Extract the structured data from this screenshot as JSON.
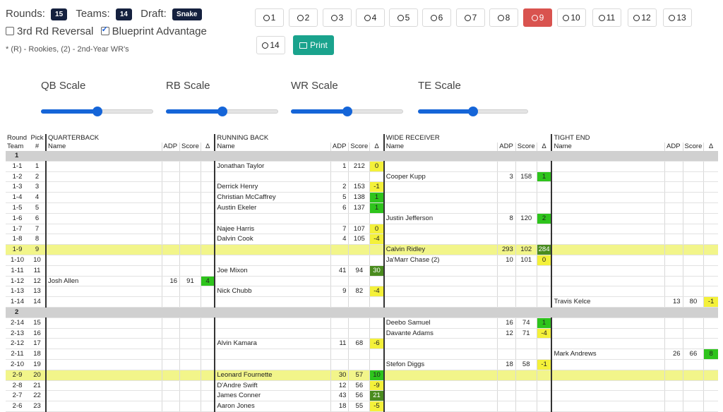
{
  "settings": {
    "rounds_label": "Rounds:",
    "rounds_value": "15",
    "teams_label": "Teams:",
    "teams_value": "14",
    "draft_label": "Draft:",
    "draft_value": "Snake",
    "reversal_label": "3rd Rd Reversal",
    "reversal_checked": false,
    "blueprint_label": "Blueprint Advantage",
    "blueprint_checked": true,
    "note": "* (R) - Rookies, (2) - 2nd-Year WR's"
  },
  "team_buttons": [
    "1",
    "2",
    "3",
    "4",
    "5",
    "6",
    "7",
    "8",
    "9",
    "10",
    "11",
    "12",
    "13",
    "14"
  ],
  "active_team": "9",
  "print_label": "Print",
  "scales": [
    {
      "label": "QB Scale",
      "value": 0.5
    },
    {
      "label": "RB Scale",
      "value": 0.5
    },
    {
      "label": "WR Scale",
      "value": 0.5
    },
    {
      "label": "TE Scale",
      "value": 0.5
    }
  ],
  "table": {
    "h_round": "Round",
    "h_team": "Team",
    "h_pick": "Pick",
    "h_num": "#",
    "groups": [
      "QUARTERBACK",
      "RUNNING BACK",
      "WIDE RECEIVER",
      "TIGHT END"
    ],
    "h_name": "Name",
    "h_adp": "ADP",
    "h_score": "Score",
    "h_delta": "Δ",
    "rows": [
      {
        "group": "1"
      },
      {
        "rt": "1-1",
        "pick": "1",
        "rb": {
          "name": "Jonathan Taylor",
          "adp": "1",
          "score": "212",
          "delta": "0",
          "c": "y"
        }
      },
      {
        "rt": "1-2",
        "pick": "2",
        "wr": {
          "name": "Cooper Kupp",
          "adp": "3",
          "score": "158",
          "delta": "1",
          "c": "g"
        }
      },
      {
        "rt": "1-3",
        "pick": "3",
        "rb": {
          "name": "Derrick Henry",
          "adp": "2",
          "score": "153",
          "delta": "-1",
          "c": "y"
        }
      },
      {
        "rt": "1-4",
        "pick": "4",
        "rb": {
          "name": "Christian McCaffrey",
          "adp": "5",
          "score": "138",
          "delta": "1",
          "c": "g"
        }
      },
      {
        "rt": "1-5",
        "pick": "5",
        "rb": {
          "name": "Austin Ekeler",
          "adp": "6",
          "score": "137",
          "delta": "1",
          "c": "g"
        }
      },
      {
        "rt": "1-6",
        "pick": "6",
        "wr": {
          "name": "Justin Jefferson",
          "adp": "8",
          "score": "120",
          "delta": "2",
          "c": "g"
        }
      },
      {
        "rt": "1-7",
        "pick": "7",
        "rb": {
          "name": "Najee Harris",
          "adp": "7",
          "score": "107",
          "delta": "0",
          "c": "y"
        }
      },
      {
        "rt": "1-8",
        "pick": "8",
        "rb": {
          "name": "Dalvin Cook",
          "adp": "4",
          "score": "105",
          "delta": "-4",
          "c": "y"
        }
      },
      {
        "rt": "1-9",
        "pick": "9",
        "hl": true,
        "wr": {
          "name": "Calvin Ridley",
          "adp": "293",
          "score": "102",
          "delta": "284",
          "c": "d"
        }
      },
      {
        "rt": "1-10",
        "pick": "10",
        "wr": {
          "name": "Ja'Marr Chase (2)",
          "adp": "10",
          "score": "101",
          "delta": "0",
          "c": "y"
        }
      },
      {
        "rt": "1-11",
        "pick": "11",
        "rb": {
          "name": "Joe Mixon",
          "adp": "41",
          "score": "94",
          "delta": "30",
          "c": "d"
        }
      },
      {
        "rt": "1-12",
        "pick": "12",
        "qb": {
          "name": "Josh Allen",
          "adp": "16",
          "score": "91",
          "delta": "4",
          "c": "g"
        }
      },
      {
        "rt": "1-13",
        "pick": "13",
        "rb": {
          "name": "Nick Chubb",
          "adp": "9",
          "score": "82",
          "delta": "-4",
          "c": "y"
        }
      },
      {
        "rt": "1-14",
        "pick": "14",
        "te": {
          "name": "Travis Kelce",
          "adp": "13",
          "score": "80",
          "delta": "-1",
          "c": "y"
        }
      },
      {
        "group": "2"
      },
      {
        "rt": "2-14",
        "pick": "15",
        "wr": {
          "name": "Deebo Samuel",
          "adp": "16",
          "score": "74",
          "delta": "1",
          "c": "g"
        }
      },
      {
        "rt": "2-13",
        "pick": "16",
        "wr": {
          "name": "Davante Adams",
          "adp": "12",
          "score": "71",
          "delta": "-4",
          "c": "y"
        }
      },
      {
        "rt": "2-12",
        "pick": "17",
        "rb": {
          "name": "Alvin Kamara",
          "adp": "11",
          "score": "68",
          "delta": "-6",
          "c": "y"
        }
      },
      {
        "rt": "2-11",
        "pick": "18",
        "te": {
          "name": "Mark Andrews",
          "adp": "26",
          "score": "66",
          "delta": "8",
          "c": "g"
        }
      },
      {
        "rt": "2-10",
        "pick": "19",
        "wr": {
          "name": "Stefon Diggs",
          "adp": "18",
          "score": "58",
          "delta": "-1",
          "c": "y"
        }
      },
      {
        "rt": "2-9",
        "pick": "20",
        "hl": true,
        "rb": {
          "name": "Leonard Fournette",
          "adp": "30",
          "score": "57",
          "delta": "10",
          "c": "g"
        }
      },
      {
        "rt": "2-8",
        "pick": "21",
        "rb": {
          "name": "D'Andre Swift",
          "adp": "12",
          "score": "56",
          "delta": "-9",
          "c": "y"
        }
      },
      {
        "rt": "2-7",
        "pick": "22",
        "rb": {
          "name": "James Conner",
          "adp": "43",
          "score": "56",
          "delta": "21",
          "c": "d"
        }
      },
      {
        "rt": "2-6",
        "pick": "23",
        "rb": {
          "name": "Aaron Jones",
          "adp": "18",
          "score": "55",
          "delta": "-5",
          "c": "y"
        }
      }
    ]
  }
}
